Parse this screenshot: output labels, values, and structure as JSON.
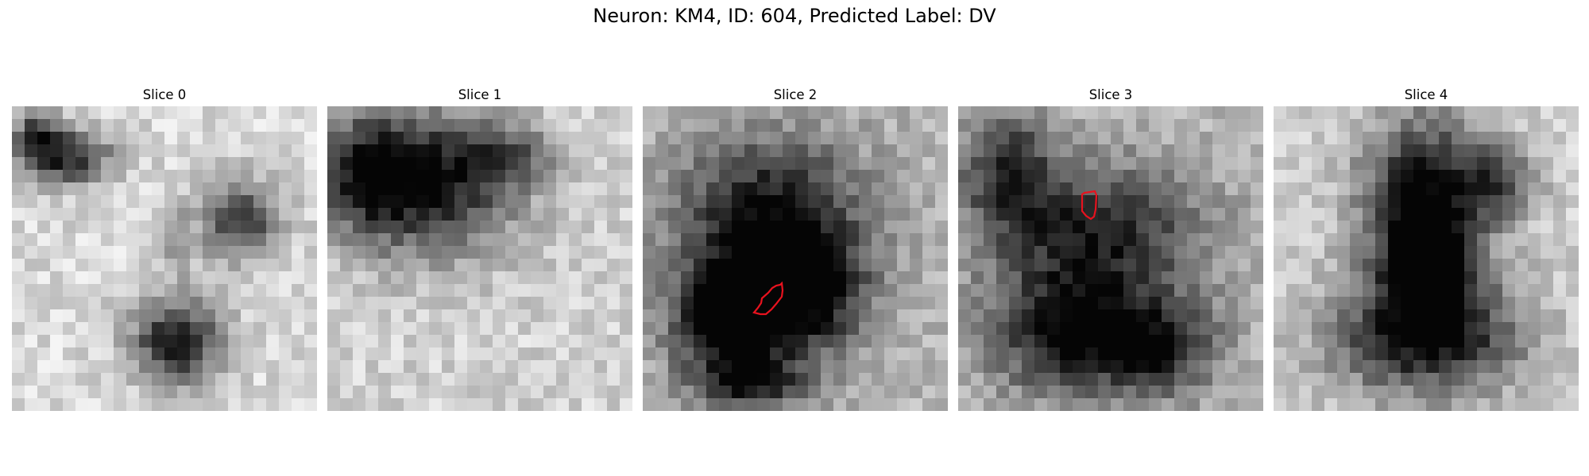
{
  "figure": {
    "title": "Neuron: KM4, ID: 604, Predicted Label: DV"
  },
  "slices": [
    {
      "title": "Slice 0",
      "has_contour": false
    },
    {
      "title": "Slice 1",
      "has_contour": false
    },
    {
      "title": "Slice 2",
      "has_contour": true
    },
    {
      "title": "Slice 3",
      "has_contour": true
    },
    {
      "title": "Slice 4",
      "has_contour": false
    }
  ],
  "colors": {
    "contour": "#e8121e",
    "background": "#ffffff"
  }
}
